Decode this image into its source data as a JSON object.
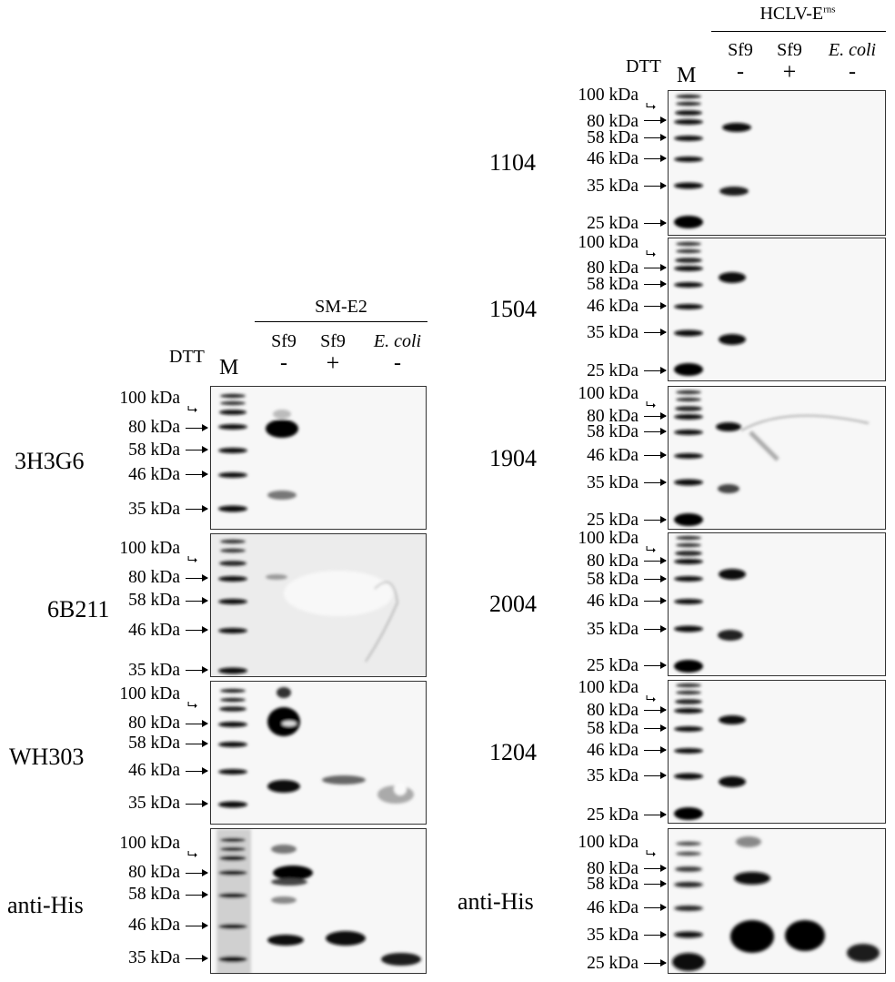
{
  "left_figure": {
    "antigen": "SM-E2",
    "dtt_label": "DTT",
    "marker_label": "M",
    "lanes": [
      {
        "sample": "Sf9",
        "dtt": "-"
      },
      {
        "sample": "Sf9",
        "dtt": "+"
      },
      {
        "sample": "E. coli",
        "dtt": "-"
      }
    ],
    "panels": [
      {
        "name": "3H3G6",
        "markers": [
          "100 kDa",
          "80 kDa",
          "58 kDa",
          "46 kDa",
          "35 kDa"
        ]
      },
      {
        "name": "6B211",
        "markers": [
          "100 kDa",
          "80 kDa",
          "58 kDa",
          "46 kDa",
          "35 kDa"
        ]
      },
      {
        "name": "WH303",
        "markers": [
          "100 kDa",
          "80 kDa",
          "58 kDa",
          "46 kDa",
          "35 kDa"
        ]
      },
      {
        "name": "anti-His",
        "markers": [
          "100 kDa",
          "80 kDa",
          "58 kDa",
          "46 kDa",
          "35 kDa"
        ]
      }
    ]
  },
  "right_figure": {
    "antigen_prefix": "HCLV-E",
    "antigen_superscript": "rns",
    "dtt_label": "DTT",
    "marker_label": "M",
    "lanes": [
      {
        "sample": "Sf9",
        "dtt": "-"
      },
      {
        "sample": "Sf9",
        "dtt": "+"
      },
      {
        "sample": "E. coli",
        "dtt": "-"
      }
    ],
    "panels": [
      {
        "name": "1104",
        "markers": [
          "100 kDa",
          "80 kDa",
          "58 kDa",
          "46 kDa",
          "35 kDa",
          "25 kDa"
        ]
      },
      {
        "name": "1504",
        "markers": [
          "100 kDa",
          "80 kDa",
          "58 kDa",
          "46 kDa",
          "35 kDa",
          "25 kDa"
        ]
      },
      {
        "name": "1904",
        "markers": [
          "100 kDa",
          "80 kDa",
          "58 kDa",
          "46 kDa",
          "35 kDa",
          "25 kDa"
        ]
      },
      {
        "name": "2004",
        "markers": [
          "100 kDa",
          "80 kDa",
          "58 kDa",
          "46 kDa",
          "35 kDa",
          "25 kDa"
        ]
      },
      {
        "name": "1204",
        "markers": [
          "100 kDa",
          "80 kDa",
          "58 kDa",
          "46 kDa",
          "35 kDa",
          "25 kDa"
        ]
      },
      {
        "name": "anti-His",
        "markers": [
          "100 kDa",
          "80 kDa",
          "58 kDa",
          "46 kDa",
          "35 kDa",
          "25 kDa"
        ]
      }
    ]
  }
}
